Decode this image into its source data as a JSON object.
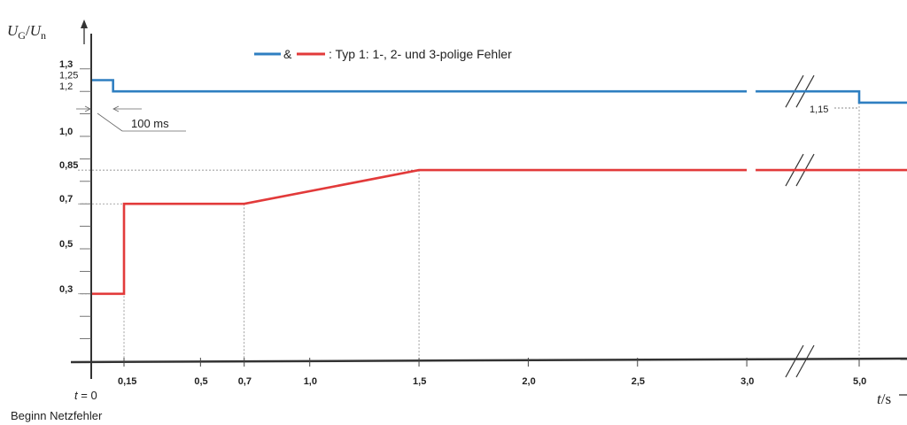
{
  "chart_data": {
    "type": "line",
    "ylabel": "U_G/U_n",
    "ylabel_parts": {
      "u1": "U",
      "sub1": "G",
      "slash": "/",
      "u2": "U",
      "sub2": "n"
    },
    "xlabel": "t/s",
    "xlabel_parts": {
      "t": "t",
      "unit": "/s"
    },
    "x_ticks": [
      "0,15",
      "0,5",
      "0,7",
      "1,0",
      "1,5",
      "2,0",
      "2,5",
      "3,0",
      "5,0"
    ],
    "y_ticks": [
      "1,3",
      "1,25",
      "1,2",
      "1,0",
      "0,85",
      "0,7",
      "0,5",
      "0,3"
    ],
    "legend": {
      "amp": "&",
      "text": ": Typ 1: 1-, 2- und 3-polige Fehler",
      "blue_color": "#2f7fc1",
      "red_color": "#e23a3a"
    },
    "series": [
      {
        "color": "#2f7fc1",
        "x": [
          0,
          0.1,
          0.1,
          3.0,
          3.0,
          5.0,
          5.0,
          5.2
        ],
        "y": [
          1.25,
          1.25,
          1.2,
          1.2,
          1.2,
          1.2,
          1.15,
          1.15
        ]
      },
      {
        "color": "#e23a3a",
        "x": [
          0,
          0.15,
          0.15,
          0.7,
          1.5,
          3.0,
          3.0,
          5.2
        ],
        "y": [
          0.3,
          0.3,
          0.7,
          0.7,
          0.85,
          0.85,
          0.85,
          0.85
        ]
      }
    ],
    "annotations": {
      "ms100": "100 ms",
      "v115": "1,15",
      "t0_t": "t",
      "t0_rest": " = 0",
      "beginn": "Beginn Netzfehler"
    },
    "axis_break": "between 3,0 and 5,0",
    "grid": false
  }
}
